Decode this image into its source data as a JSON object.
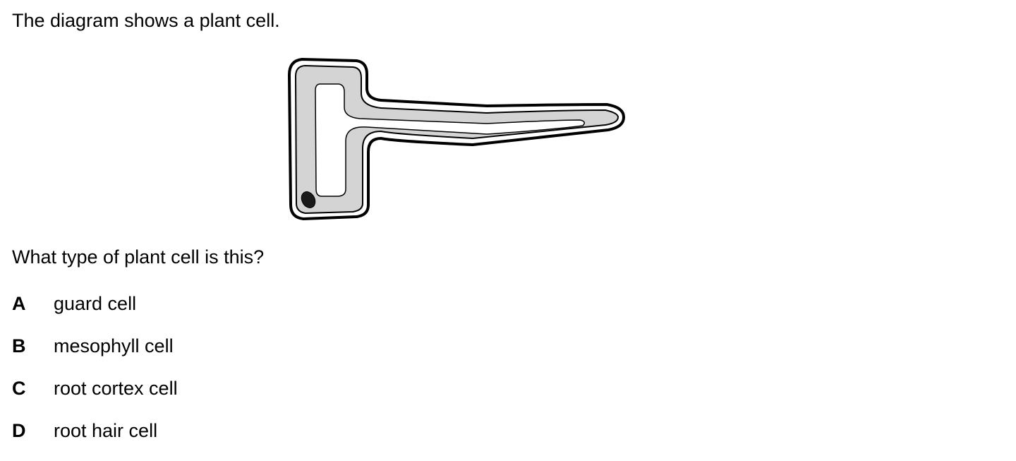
{
  "intro": "The diagram shows a plant cell.",
  "question": "What type of plant cell is this?",
  "options": [
    {
      "letter": "A",
      "text": "guard cell"
    },
    {
      "letter": "B",
      "text": "mesophyll cell"
    },
    {
      "letter": "C",
      "text": "root cortex cell"
    },
    {
      "letter": "D",
      "text": "root hair cell"
    }
  ],
  "colors": {
    "cytoplasm": "#d4d4d4",
    "vacuole": "#ffffff",
    "outline": "#000000",
    "nucleus": "#1a1a1a"
  }
}
